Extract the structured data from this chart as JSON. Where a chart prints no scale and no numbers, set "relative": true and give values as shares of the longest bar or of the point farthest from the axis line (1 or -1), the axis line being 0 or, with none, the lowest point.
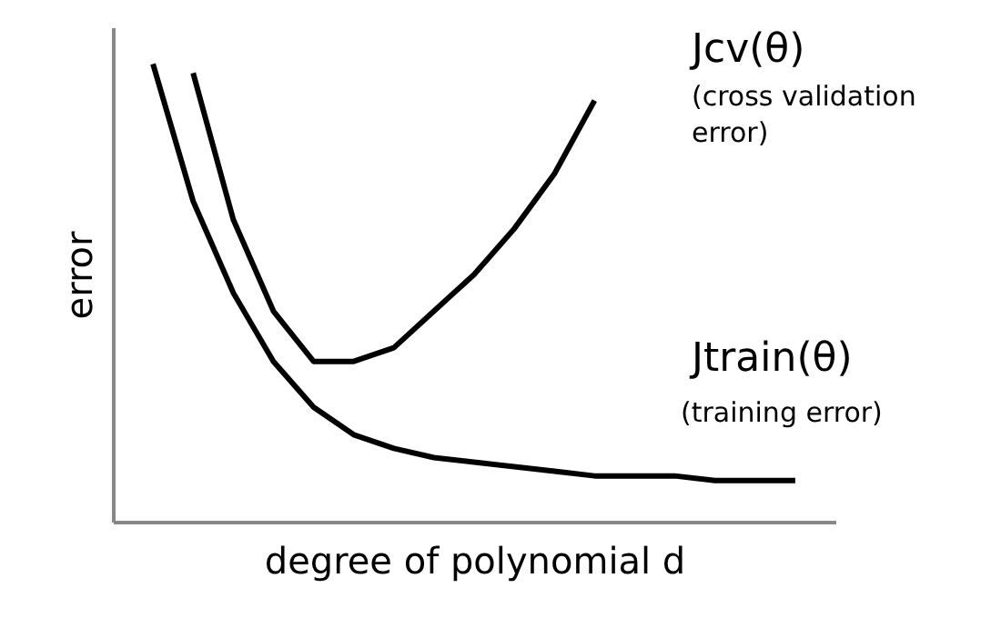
{
  "chart_data": {
    "type": "line",
    "relative": true,
    "xlabel": "degree of polynomial d",
    "ylabel": "error",
    "categories": [
      null,
      null,
      null,
      null,
      null,
      null,
      null,
      null,
      null,
      null,
      null,
      null,
      null,
      null,
      null,
      null,
      null
    ],
    "grid": false,
    "marker": "none",
    "line_style": "solid",
    "series": [
      {
        "color": "#000000",
        "values": [
          1,
          0.7,
          0.5,
          0.35,
          0.25,
          0.19,
          0.16,
          0.14,
          0.13,
          0.12,
          0.11,
          0.1,
          0.1,
          0.1,
          0.09,
          0.09,
          0.09
        ]
      },
      {
        "color": "#000000",
        "values": [
          null,
          0.98,
          0.66,
          0.46,
          0.35,
          0.35,
          0.38,
          0.46,
          0.54,
          0.64,
          0.76,
          0.92,
          null,
          null,
          null,
          null,
          null
        ]
      }
    ],
    "annotations": [
      "Jcv(θ)",
      "(cross validation\nerror)",
      "Jtrain(θ)",
      "(training error)"
    ]
  }
}
